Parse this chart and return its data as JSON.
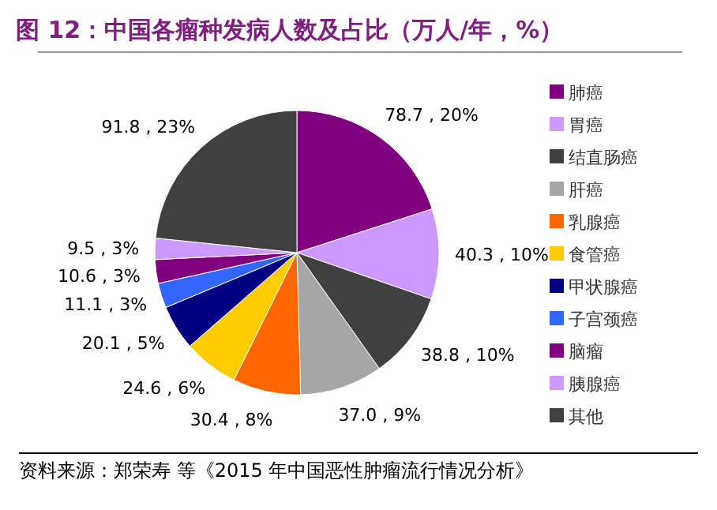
{
  "chart_data": {
    "type": "pie",
    "title": "图 12：中国各瘤种发病人数及占比（万人/年，%）",
    "categories": [
      "肺癌",
      "胃癌",
      "结直肠癌",
      "肝癌",
      "乳腺癌",
      "食管癌",
      "甲状腺癌",
      "子宫颈癌",
      "脑瘤",
      "胰腺癌",
      "其他"
    ],
    "values": [
      78.7,
      40.3,
      38.8,
      37.0,
      30.4,
      24.6,
      20.1,
      11.1,
      10.6,
      9.5,
      91.8
    ],
    "value_labels": [
      "78.7 , 20%",
      "40.3 , 10%",
      "38.8 , 10%",
      "37.0 , 9%",
      "30.4 , 8%",
      "24.6 , 6%",
      "20.1 , 5%",
      "11.1 , 3%",
      "10.6 , 3%",
      "9.5 , 3%",
      "91.8 , 23%"
    ],
    "colors": [
      "#800080",
      "#cc99ff",
      "#404040",
      "#a6a6a6",
      "#ff6600",
      "#ffcc00",
      "#000080",
      "#3366ff",
      "#800080",
      "#cc99ff",
      "#404040"
    ],
    "legend": "right",
    "annotations": [
      "资料来源：郑荣寿 等《2015 年中国恶性肿瘤流行情况分析》"
    ]
  }
}
